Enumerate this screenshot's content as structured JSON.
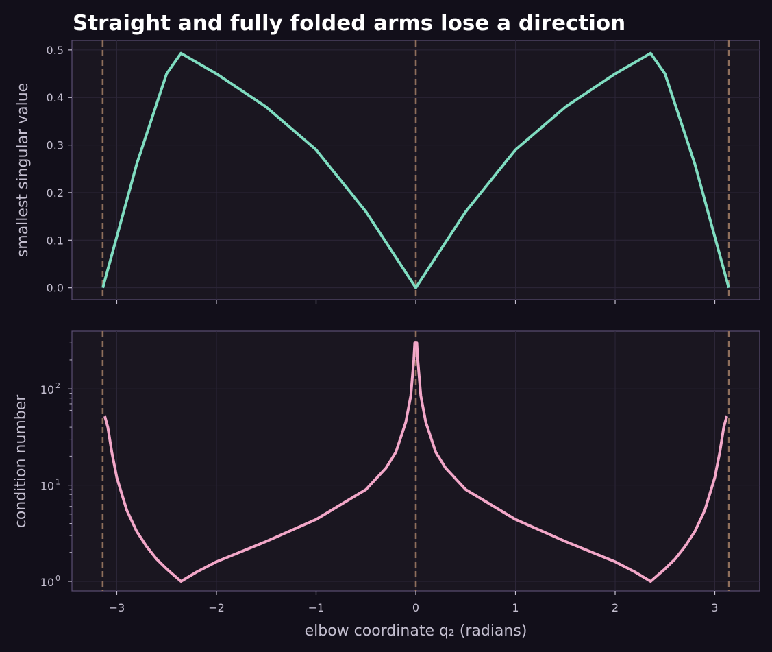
{
  "chart_data": [
    {
      "type": "line",
      "title": "Straight and fully folded arms lose a direction",
      "xlabel": "",
      "ylabel": "smallest singular value",
      "xlim": [
        -3.45,
        3.45
      ],
      "ylim": [
        -0.025,
        0.52
      ],
      "yscale": "linear",
      "grid": true,
      "x_ticks": [
        -3,
        -2,
        -1,
        0,
        1,
        2,
        3
      ],
      "x_tick_labels": [],
      "y_ticks": [
        0.0,
        0.1,
        0.2,
        0.3,
        0.4,
        0.5
      ],
      "y_tick_labels": [
        "0.0",
        "0.1",
        "0.2",
        "0.3",
        "0.4",
        "0.5"
      ],
      "vlines": [
        -3.1416,
        0,
        3.1416
      ],
      "vline_color": "#8f6f5c",
      "series": [
        {
          "color": "#7fdcc0",
          "x": [
            -3.14,
            -2.8,
            -2.5,
            -2.356,
            -2.0,
            -1.5,
            -1.0,
            -0.5,
            0.0,
            0.5,
            1.0,
            1.5,
            2.0,
            2.356,
            2.5,
            2.8,
            3.14
          ],
          "y": [
            0.0,
            0.26,
            0.45,
            0.493,
            0.45,
            0.38,
            0.29,
            0.16,
            0.0,
            0.16,
            0.29,
            0.38,
            0.45,
            0.493,
            0.45,
            0.26,
            0.0
          ]
        }
      ]
    },
    {
      "type": "line",
      "title": "",
      "xlabel": "elbow coordinate q₂ (radians)",
      "ylabel": "condition number",
      "xlim": [
        -3.45,
        3.45
      ],
      "ylim_log10": [
        -0.1,
        2.6
      ],
      "yscale": "log",
      "grid": true,
      "x_ticks": [
        -3,
        -2,
        -1,
        0,
        1,
        2,
        3
      ],
      "x_tick_labels": [
        "−3",
        "−2",
        "−1",
        "0",
        "1",
        "2",
        "3"
      ],
      "y_ticks_log10": [
        0,
        1,
        2
      ],
      "y_tick_base": "10",
      "y_tick_exponents": [
        "0",
        "1",
        "2"
      ],
      "vlines": [
        -3.1416,
        0,
        3.1416
      ],
      "vline_color": "#8f6f5c",
      "series": [
        {
          "color": "#f2a7c8",
          "x": [
            -3.12,
            -3.09,
            -3.05,
            -3.0,
            -2.9,
            -2.8,
            -2.7,
            -2.6,
            -2.5,
            -2.356,
            -2.2,
            -2.0,
            -1.5,
            -1.0,
            -0.5,
            -0.3,
            -0.2,
            -0.1,
            -0.05,
            -0.02,
            -0.01,
            0.01,
            0.02,
            0.05,
            0.1,
            0.2,
            0.3,
            0.5,
            1.0,
            1.5,
            2.0,
            2.2,
            2.356,
            2.5,
            2.6,
            2.7,
            2.8,
            2.9,
            3.0,
            3.05,
            3.09,
            3.12
          ],
          "y": [
            52,
            40,
            22,
            12,
            5.5,
            3.3,
            2.3,
            1.7,
            1.35,
            1.0,
            1.25,
            1.6,
            2.6,
            4.4,
            9,
            15,
            22,
            45,
            85,
            200,
            300,
            300,
            200,
            85,
            45,
            22,
            15,
            9,
            4.4,
            2.6,
            1.6,
            1.25,
            1.0,
            1.35,
            1.7,
            2.3,
            3.3,
            5.5,
            12,
            22,
            40,
            52
          ]
        }
      ]
    }
  ]
}
